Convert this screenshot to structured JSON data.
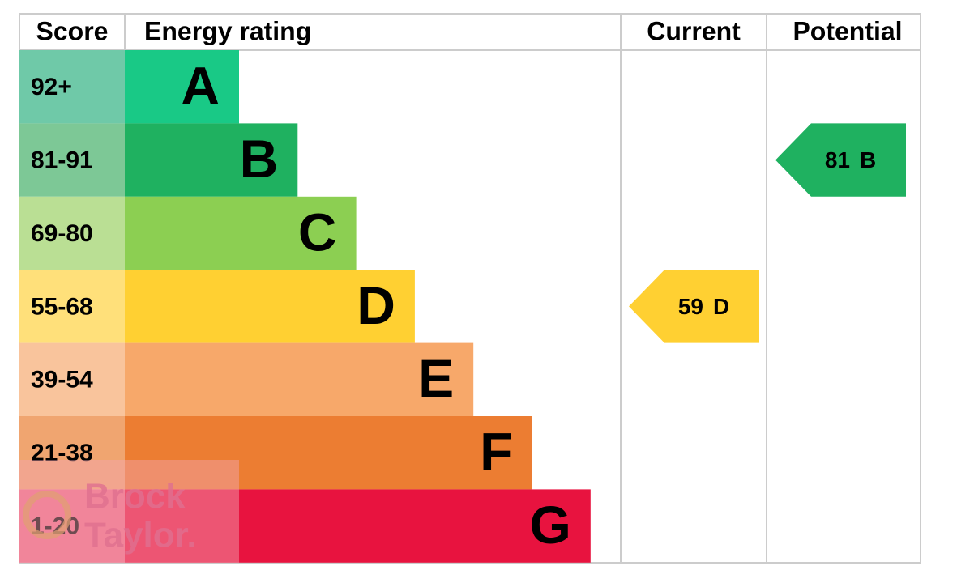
{
  "header": {
    "score": "Score",
    "rating": "Energy rating",
    "current": "Current",
    "potential": "Potential"
  },
  "bands": [
    {
      "score": "92+",
      "letter": "A",
      "color": "#19c986",
      "score_color": "#6fc9a8"
    },
    {
      "score": "81-91",
      "letter": "B",
      "color": "#1fb160",
      "score_color": "#7dc896"
    },
    {
      "score": "69-80",
      "letter": "C",
      "color": "#8ccf52",
      "score_color": "#badf94"
    },
    {
      "score": "55-68",
      "letter": "D",
      "color": "#ffd032",
      "score_color": "#ffe07a"
    },
    {
      "score": "39-54",
      "letter": "E",
      "color": "#f7a86a",
      "score_color": "#f9c49c"
    },
    {
      "score": "21-38",
      "letter": "F",
      "color": "#ec7d32",
      "score_color": "#f0a570"
    },
    {
      "score": "1-20",
      "letter": "G",
      "color": "#e8133f",
      "score_color": "#ef6b85"
    }
  ],
  "current": {
    "value": "59",
    "letter": "D"
  },
  "potential": {
    "value": "81",
    "letter": "B"
  },
  "watermark": {
    "line1": "Brock",
    "line2": "Taylor."
  }
}
